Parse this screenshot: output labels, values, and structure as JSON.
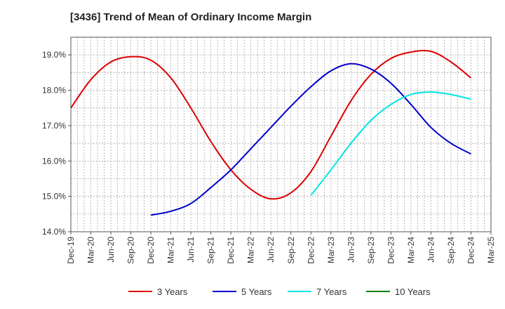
{
  "chart_data": {
    "type": "line",
    "title": "[3436]  Trend of Mean of Ordinary Income Margin",
    "xlabel": "",
    "ylabel": "",
    "x_ticks": [
      "Dec-19",
      "Mar-20",
      "Jun-20",
      "Sep-20",
      "Dec-20",
      "Mar-21",
      "Jun-21",
      "Sep-21",
      "Dec-21",
      "Mar-22",
      "Jun-22",
      "Sep-22",
      "Dec-22",
      "Mar-23",
      "Jun-23",
      "Sep-23",
      "Dec-23",
      "Mar-24",
      "Jun-24",
      "Sep-24",
      "Dec-24",
      "Mar-25"
    ],
    "y_ticks": [
      "14.0%",
      "15.0%",
      "16.0%",
      "17.0%",
      "18.0%",
      "19.0%"
    ],
    "ylim": [
      14.0,
      19.5
    ],
    "grid": true,
    "legend_position": "bottom",
    "series": [
      {
        "name": "3 Years",
        "color": "#dd0000",
        "x": [
          "Dec-19",
          "Mar-20",
          "Jun-20",
          "Sep-20",
          "Dec-20",
          "Mar-21",
          "Jun-21",
          "Sep-21",
          "Dec-21",
          "Mar-22",
          "Jun-22",
          "Sep-22",
          "Dec-22",
          "Mar-23",
          "Jun-23",
          "Sep-23",
          "Dec-23",
          "Mar-24",
          "Jun-24",
          "Sep-24",
          "Dec-24"
        ],
        "values": [
          17.5,
          18.3,
          18.8,
          18.95,
          18.85,
          18.35,
          17.5,
          16.55,
          15.75,
          15.2,
          14.93,
          15.1,
          15.7,
          16.7,
          17.7,
          18.45,
          18.9,
          19.08,
          19.1,
          18.8,
          18.35
        ]
      },
      {
        "name": "5 Years",
        "color": "#0000cc",
        "x": [
          "Dec-20",
          "Mar-21",
          "Jun-21",
          "Sep-21",
          "Dec-21",
          "Mar-22",
          "Jun-22",
          "Sep-22",
          "Dec-22",
          "Mar-23",
          "Jun-23",
          "Sep-23",
          "Dec-23",
          "Mar-24",
          "Jun-24",
          "Sep-24",
          "Dec-24"
        ],
        "values": [
          14.47,
          14.58,
          14.8,
          15.25,
          15.75,
          16.35,
          16.95,
          17.55,
          18.1,
          18.55,
          18.75,
          18.6,
          18.2,
          17.6,
          16.95,
          16.5,
          16.2
        ]
      },
      {
        "name": "7 Years",
        "color": "#00e5e5",
        "x": [
          "Dec-22",
          "Mar-23",
          "Jun-23",
          "Sep-23",
          "Dec-23",
          "Mar-24",
          "Jun-24",
          "Sep-24",
          "Dec-24"
        ],
        "values": [
          15.03,
          15.75,
          16.5,
          17.15,
          17.6,
          17.88,
          17.95,
          17.88,
          17.75
        ]
      },
      {
        "name": "10 Years",
        "color": "#008000",
        "x": [],
        "values": []
      }
    ]
  }
}
